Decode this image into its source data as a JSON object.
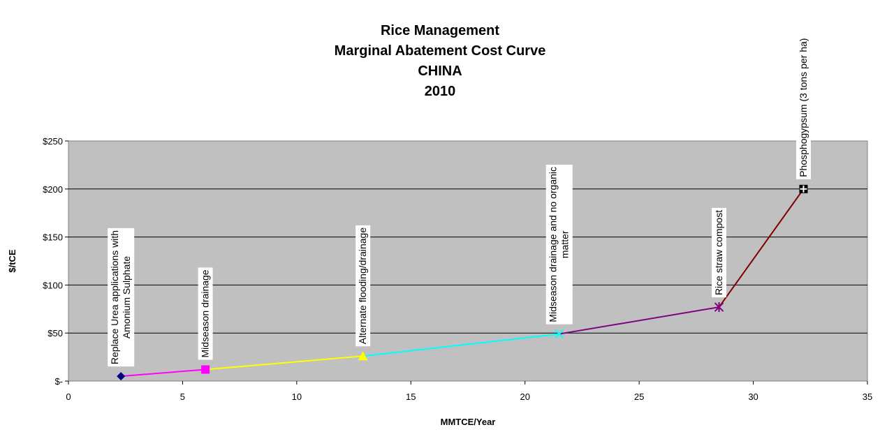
{
  "chart_data": {
    "type": "line",
    "title": [
      "Rice Management",
      "Marginal Abatement Cost Curve",
      "CHINA",
      "2010"
    ],
    "xlabel": "MMTCE/Year",
    "ylabel": "$/tCE",
    "xlim": [
      0,
      35
    ],
    "ylim": [
      0,
      250
    ],
    "x_ticks": [
      "0",
      "5",
      "10",
      "15",
      "20",
      "25",
      "30",
      "35"
    ],
    "y_ticks": [
      "$-",
      "$50",
      "$100",
      "$150",
      "$200",
      "$250"
    ],
    "grid": "horizontal",
    "plot_background": "#C0C0C0",
    "points": [
      {
        "x": 2.3,
        "y": 5,
        "marker": "diamond",
        "color": "#000080",
        "label": [
          "Replace Urea applications with",
          "Amonium Sulphate"
        ]
      },
      {
        "x": 6.0,
        "y": 12,
        "marker": "square",
        "color": "#FF00FF",
        "label": [
          "Midseason drainage"
        ]
      },
      {
        "x": 12.9,
        "y": 26,
        "marker": "triangle",
        "color": "#FFFF00",
        "label": [
          "Alternate flooding/drainage"
        ]
      },
      {
        "x": 21.5,
        "y": 49,
        "marker": "x",
        "color": "#00FFFF",
        "label": [
          "Midseason drainage and no organic",
          "matter"
        ]
      },
      {
        "x": 28.5,
        "y": 77,
        "marker": "star",
        "color": "#800080",
        "label": [
          "Rice straw compost"
        ]
      },
      {
        "x": 32.2,
        "y": 200,
        "marker": "cross",
        "color": "#000000",
        "label": [
          "Phosphogypsum (3 tons per ha)"
        ]
      }
    ],
    "segments": [
      {
        "color": "#FF00FF"
      },
      {
        "color": "#FFFF00"
      },
      {
        "color": "#00FFFF"
      },
      {
        "color": "#800080"
      },
      {
        "color": "#800000"
      }
    ]
  }
}
